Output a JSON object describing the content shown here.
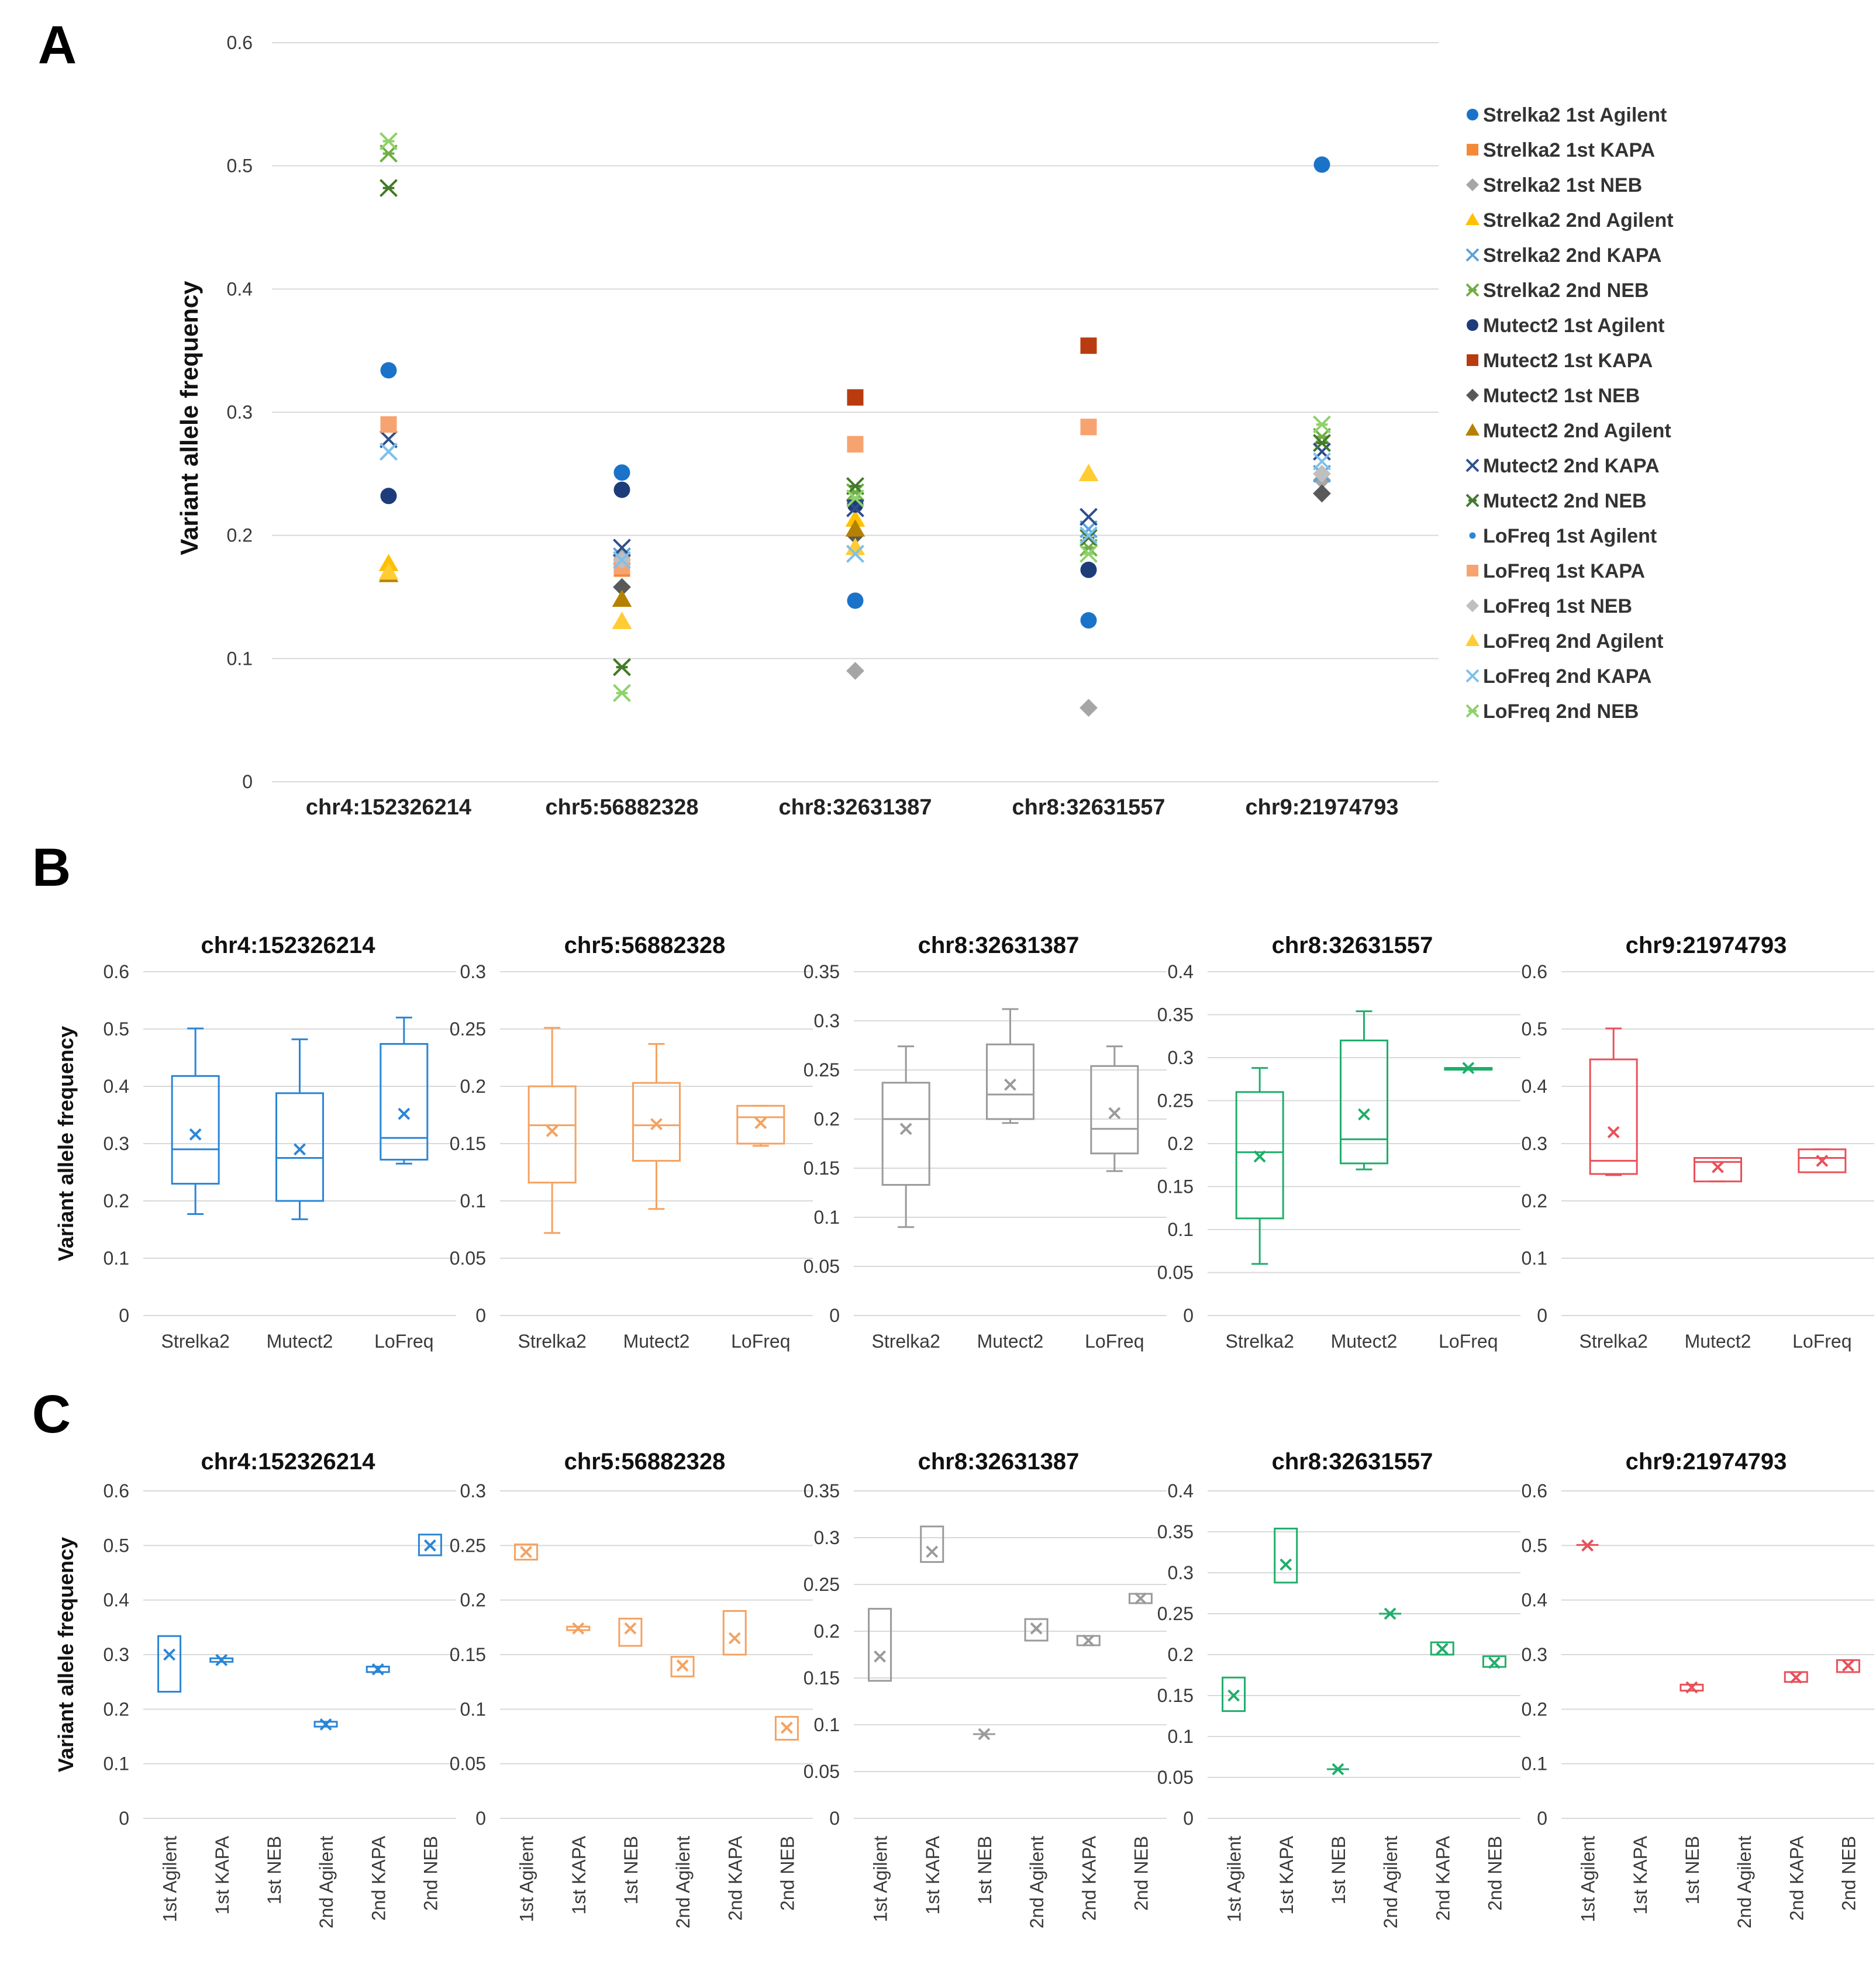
{
  "chart_data": [
    {
      "panel": "A",
      "type": "scatter",
      "ylabel": "Variant allele frequency",
      "ylim": [
        0,
        0.6
      ],
      "yticks": [
        "0",
        "0.1",
        "0.2",
        "0.3",
        "0.4",
        "0.5",
        "0.6"
      ],
      "categories": [
        "chr4:152326214",
        "chr5:56882328",
        "chr8:32631387",
        "chr8:32631557",
        "chr9:21974793"
      ],
      "legend_position": "right",
      "series": [
        {
          "name": "Strelka2 1st Agilent",
          "marker": "circle",
          "color": "#1a73c9",
          "values": [
            0.334,
            0.251,
            0.147,
            0.131,
            0.501
          ]
        },
        {
          "name": "Strelka2 1st KAPA",
          "marker": "square",
          "color": "#f4893a",
          "values": [
            0.29,
            0.173,
            0.274,
            0.288,
            null
          ]
        },
        {
          "name": "Strelka2 1st NEB",
          "marker": "diamond",
          "color": "#a6a6a6",
          "values": [
            null,
            0.183,
            0.09,
            0.06,
            0.245
          ]
        },
        {
          "name": "Strelka2 2nd Agilent",
          "marker": "triangle",
          "color": "#ffc000",
          "values": [
            0.177,
            0.13,
            0.213,
            0.25,
            null
          ]
        },
        {
          "name": "Strelka2 2nd KAPA",
          "marker": "x",
          "color": "#5ba3dc",
          "values": [
            0.268,
            0.183,
            0.185,
            0.205,
            0.25
          ]
        },
        {
          "name": "Strelka2 2nd NEB",
          "marker": "star",
          "color": "#70ad47",
          "values": [
            0.51,
            0.093,
            0.235,
            0.19,
            0.28
          ]
        },
        {
          "name": "Mutect2 1st Agilent",
          "marker": "circle",
          "color": "#1f3c7a",
          "values": [
            0.232,
            0.237,
            0.225,
            0.172,
            null
          ]
        },
        {
          "name": "Mutect2 1st KAPA",
          "marker": "square",
          "color": "#b83c0f",
          "values": [
            null,
            null,
            0.312,
            0.354,
            null
          ]
        },
        {
          "name": "Mutect2 1st NEB",
          "marker": "diamond",
          "color": "#595959",
          "values": [
            null,
            0.158,
            0.2,
            null,
            0.234
          ]
        },
        {
          "name": "Mutect2 2nd Agilent",
          "marker": "triangle",
          "color": "#b58100",
          "values": [
            0.168,
            0.148,
            0.205,
            null,
            null
          ]
        },
        {
          "name": "Mutect2 2nd KAPA",
          "marker": "x",
          "color": "#2e4f8c",
          "values": [
            0.278,
            0.19,
            0.222,
            0.215,
            0.268
          ]
        },
        {
          "name": "Mutect2 2nd NEB",
          "marker": "star",
          "color": "#437a2a",
          "values": [
            0.482,
            0.093,
            0.24,
            0.198,
            0.275
          ]
        },
        {
          "name": "LoFreq 1st Agilent",
          "marker": "dot",
          "color": "#2a86d6",
          "values": [
            null,
            null,
            null,
            null,
            null
          ]
        },
        {
          "name": "LoFreq 1st KAPA",
          "marker": "square",
          "color": "#f7a36f",
          "values": [
            0.29,
            0.175,
            0.274,
            0.288,
            null
          ]
        },
        {
          "name": "LoFreq 1st NEB",
          "marker": "diamond",
          "color": "#bfbfbf",
          "values": [
            null,
            0.18,
            null,
            null,
            0.25
          ]
        },
        {
          "name": "LoFreq 2nd Agilent",
          "marker": "triangle",
          "color": "#ffcc33",
          "values": [
            0.17,
            0.13,
            0.19,
            0.25,
            null
          ]
        },
        {
          "name": "LoFreq 2nd KAPA",
          "marker": "x",
          "color": "#80c0ea",
          "values": [
            0.268,
            0.18,
            0.185,
            0.2,
            0.26
          ]
        },
        {
          "name": "LoFreq 2nd NEB",
          "marker": "star",
          "color": "#8fd16a",
          "values": [
            0.52,
            0.072,
            0.23,
            0.185,
            0.29
          ]
        }
      ]
    },
    {
      "panel": "B",
      "type": "box",
      "ylabel": "Variant allele frequency",
      "categories": [
        "Strelka2",
        "Mutect2",
        "LoFreq"
      ],
      "charts": [
        {
          "title": "chr4:152326214",
          "color": "#2a86d6",
          "ylim": [
            0,
            0.6
          ],
          "yticks": [
            "0",
            "0.1",
            "0.2",
            "0.3",
            "0.4",
            "0.5",
            "0.6"
          ],
          "boxes": [
            {
              "min": 0.177,
              "q1": 0.23,
              "median": 0.29,
              "q3": 0.418,
              "max": 0.501,
              "mean": 0.316
            },
            {
              "min": 0.168,
              "q1": 0.2,
              "median": 0.275,
              "q3": 0.388,
              "max": 0.482,
              "mean": 0.29
            },
            {
              "min": 0.265,
              "q1": 0.272,
              "median": 0.31,
              "q3": 0.474,
              "max": 0.52,
              "mean": 0.352
            }
          ]
        },
        {
          "title": "chr5:56882328",
          "color": "#f4a261",
          "ylim": [
            0,
            0.3
          ],
          "yticks": [
            "0",
            "0.05",
            "0.1",
            "0.15",
            "0.2",
            "0.25",
            "0.3"
          ],
          "boxes": [
            {
              "min": 0.072,
              "q1": 0.116,
              "median": 0.166,
              "q3": 0.2,
              "max": 0.251,
              "mean": 0.161
            },
            {
              "min": 0.093,
              "q1": 0.135,
              "median": 0.166,
              "q3": 0.203,
              "max": 0.237,
              "mean": 0.167
            },
            {
              "min": 0.148,
              "q1": 0.15,
              "median": 0.173,
              "q3": 0.183,
              "max": 0.183,
              "mean": 0.168
            }
          ]
        },
        {
          "title": "chr8:32631387",
          "color": "#9a9a9a",
          "ylim": [
            0,
            0.35
          ],
          "yticks": [
            "0",
            "0.05",
            "0.1",
            "0.15",
            "0.2",
            "0.25",
            "0.3",
            "0.35"
          ],
          "boxes": [
            {
              "min": 0.09,
              "q1": 0.133,
              "median": 0.2,
              "q3": 0.237,
              "max": 0.274,
              "mean": 0.19
            },
            {
              "min": 0.196,
              "q1": 0.2,
              "median": 0.225,
              "q3": 0.276,
              "max": 0.312,
              "mean": 0.235
            },
            {
              "min": 0.147,
              "q1": 0.165,
              "median": 0.19,
              "q3": 0.254,
              "max": 0.274,
              "mean": 0.206
            }
          ]
        },
        {
          "title": "chr8:32631557",
          "color": "#1fae6a",
          "ylim": [
            0,
            0.4
          ],
          "yticks": [
            "0",
            "0.05",
            "0.1",
            "0.15",
            "0.2",
            "0.25",
            "0.3",
            "0.35",
            "0.4"
          ],
          "boxes": [
            {
              "min": 0.06,
              "q1": 0.113,
              "median": 0.19,
              "q3": 0.26,
              "max": 0.288,
              "mean": 0.185
            },
            {
              "min": 0.17,
              "q1": 0.177,
              "median": 0.205,
              "q3": 0.32,
              "max": 0.354,
              "mean": 0.234
            },
            {
              "min": 0.288,
              "q1": 0.288,
              "median": 0.288,
              "q3": 0.288,
              "max": 0.288,
              "mean": 0.288
            }
          ]
        },
        {
          "title": "chr9:21974793",
          "color": "#e8515a",
          "ylim": [
            0,
            0.6
          ],
          "yticks": [
            "0",
            "0.1",
            "0.2",
            "0.3",
            "0.4",
            "0.5",
            "0.6"
          ],
          "boxes": [
            {
              "min": 0.245,
              "q1": 0.247,
              "median": 0.27,
              "q3": 0.447,
              "max": 0.501,
              "mean": 0.32
            },
            {
              "min": 0.234,
              "q1": 0.234,
              "median": 0.268,
              "q3": 0.275,
              "max": 0.275,
              "mean": 0.259
            },
            {
              "min": 0.25,
              "q1": 0.25,
              "median": 0.275,
              "q3": 0.29,
              "max": 0.29,
              "mean": 0.27
            }
          ]
        }
      ]
    },
    {
      "panel": "C",
      "type": "box",
      "ylabel": "Variant allele frequency",
      "categories": [
        "1st Agilent",
        "1st KAPA",
        "1st NEB",
        "2nd Agilent",
        "2nd KAPA",
        "2nd NEB"
      ],
      "charts": [
        {
          "title": "chr4:152326214",
          "color": "#2a86d6",
          "ylim": [
            0,
            0.6
          ],
          "yticks": [
            "0",
            "0.1",
            "0.2",
            "0.3",
            "0.4",
            "0.5",
            "0.6"
          ],
          "boxes": [
            {
              "low": 0.232,
              "high": 0.334,
              "mean": 0.3
            },
            {
              "low": 0.288,
              "high": 0.292,
              "mean": 0.29
            },
            null,
            {
              "low": 0.168,
              "high": 0.177,
              "mean": 0.172
            },
            {
              "low": 0.268,
              "high": 0.278,
              "mean": 0.273
            },
            {
              "low": 0.482,
              "high": 0.52,
              "mean": 0.5
            }
          ]
        },
        {
          "title": "chr5:56882328",
          "color": "#f4a261",
          "ylim": [
            0,
            0.3
          ],
          "yticks": [
            "0",
            "0.05",
            "0.1",
            "0.15",
            "0.2",
            "0.25",
            "0.3"
          ],
          "boxes": [
            {
              "low": 0.237,
              "high": 0.251,
              "mean": 0.244
            },
            {
              "low": 0.173,
              "high": 0.175,
              "mean": 0.174
            },
            {
              "low": 0.158,
              "high": 0.183,
              "mean": 0.174
            },
            {
              "low": 0.13,
              "high": 0.148,
              "mean": 0.14
            },
            {
              "low": 0.15,
              "high": 0.19,
              "mean": 0.165
            },
            {
              "low": 0.072,
              "high": 0.093,
              "mean": 0.083
            }
          ]
        },
        {
          "title": "chr8:32631387",
          "color": "#9a9a9a",
          "ylim": [
            0,
            0.35
          ],
          "yticks": [
            "0",
            "0.05",
            "0.1",
            "0.15",
            "0.2",
            "0.25",
            "0.3",
            "0.35"
          ],
          "boxes": [
            {
              "low": 0.147,
              "high": 0.224,
              "mean": 0.173
            },
            {
              "low": 0.274,
              "high": 0.312,
              "mean": 0.285
            },
            {
              "low": 0.09,
              "high": 0.09,
              "mean": 0.09
            },
            {
              "low": 0.19,
              "high": 0.213,
              "mean": 0.203
            },
            {
              "low": 0.185,
              "high": 0.195,
              "mean": 0.19
            },
            {
              "low": 0.23,
              "high": 0.24,
              "mean": 0.235
            }
          ]
        },
        {
          "title": "chr8:32631557",
          "color": "#1fae6a",
          "ylim": [
            0,
            0.4
          ],
          "yticks": [
            "0",
            "0.05",
            "0.1",
            "0.15",
            "0.2",
            "0.25",
            "0.3",
            "0.35",
            "0.4"
          ],
          "boxes": [
            {
              "low": 0.131,
              "high": 0.172,
              "mean": 0.15
            },
            {
              "low": 0.288,
              "high": 0.354,
              "mean": 0.31
            },
            {
              "low": 0.06,
              "high": 0.06,
              "mean": 0.06
            },
            {
              "low": 0.25,
              "high": 0.25,
              "mean": 0.25
            },
            {
              "low": 0.2,
              "high": 0.215,
              "mean": 0.207
            },
            {
              "low": 0.185,
              "high": 0.198,
              "mean": 0.19
            }
          ]
        },
        {
          "title": "chr9:21974793",
          "color": "#e8515a",
          "ylim": [
            0,
            0.6
          ],
          "yticks": [
            "0",
            "0.1",
            "0.2",
            "0.3",
            "0.4",
            "0.5",
            "0.6"
          ],
          "boxes": [
            {
              "low": 0.5,
              "high": 0.501,
              "mean": 0.5
            },
            null,
            {
              "low": 0.234,
              "high": 0.245,
              "mean": 0.24
            },
            null,
            {
              "low": 0.25,
              "high": 0.268,
              "mean": 0.258
            },
            {
              "low": 0.268,
              "high": 0.29,
              "mean": 0.28
            }
          ]
        }
      ]
    }
  ]
}
